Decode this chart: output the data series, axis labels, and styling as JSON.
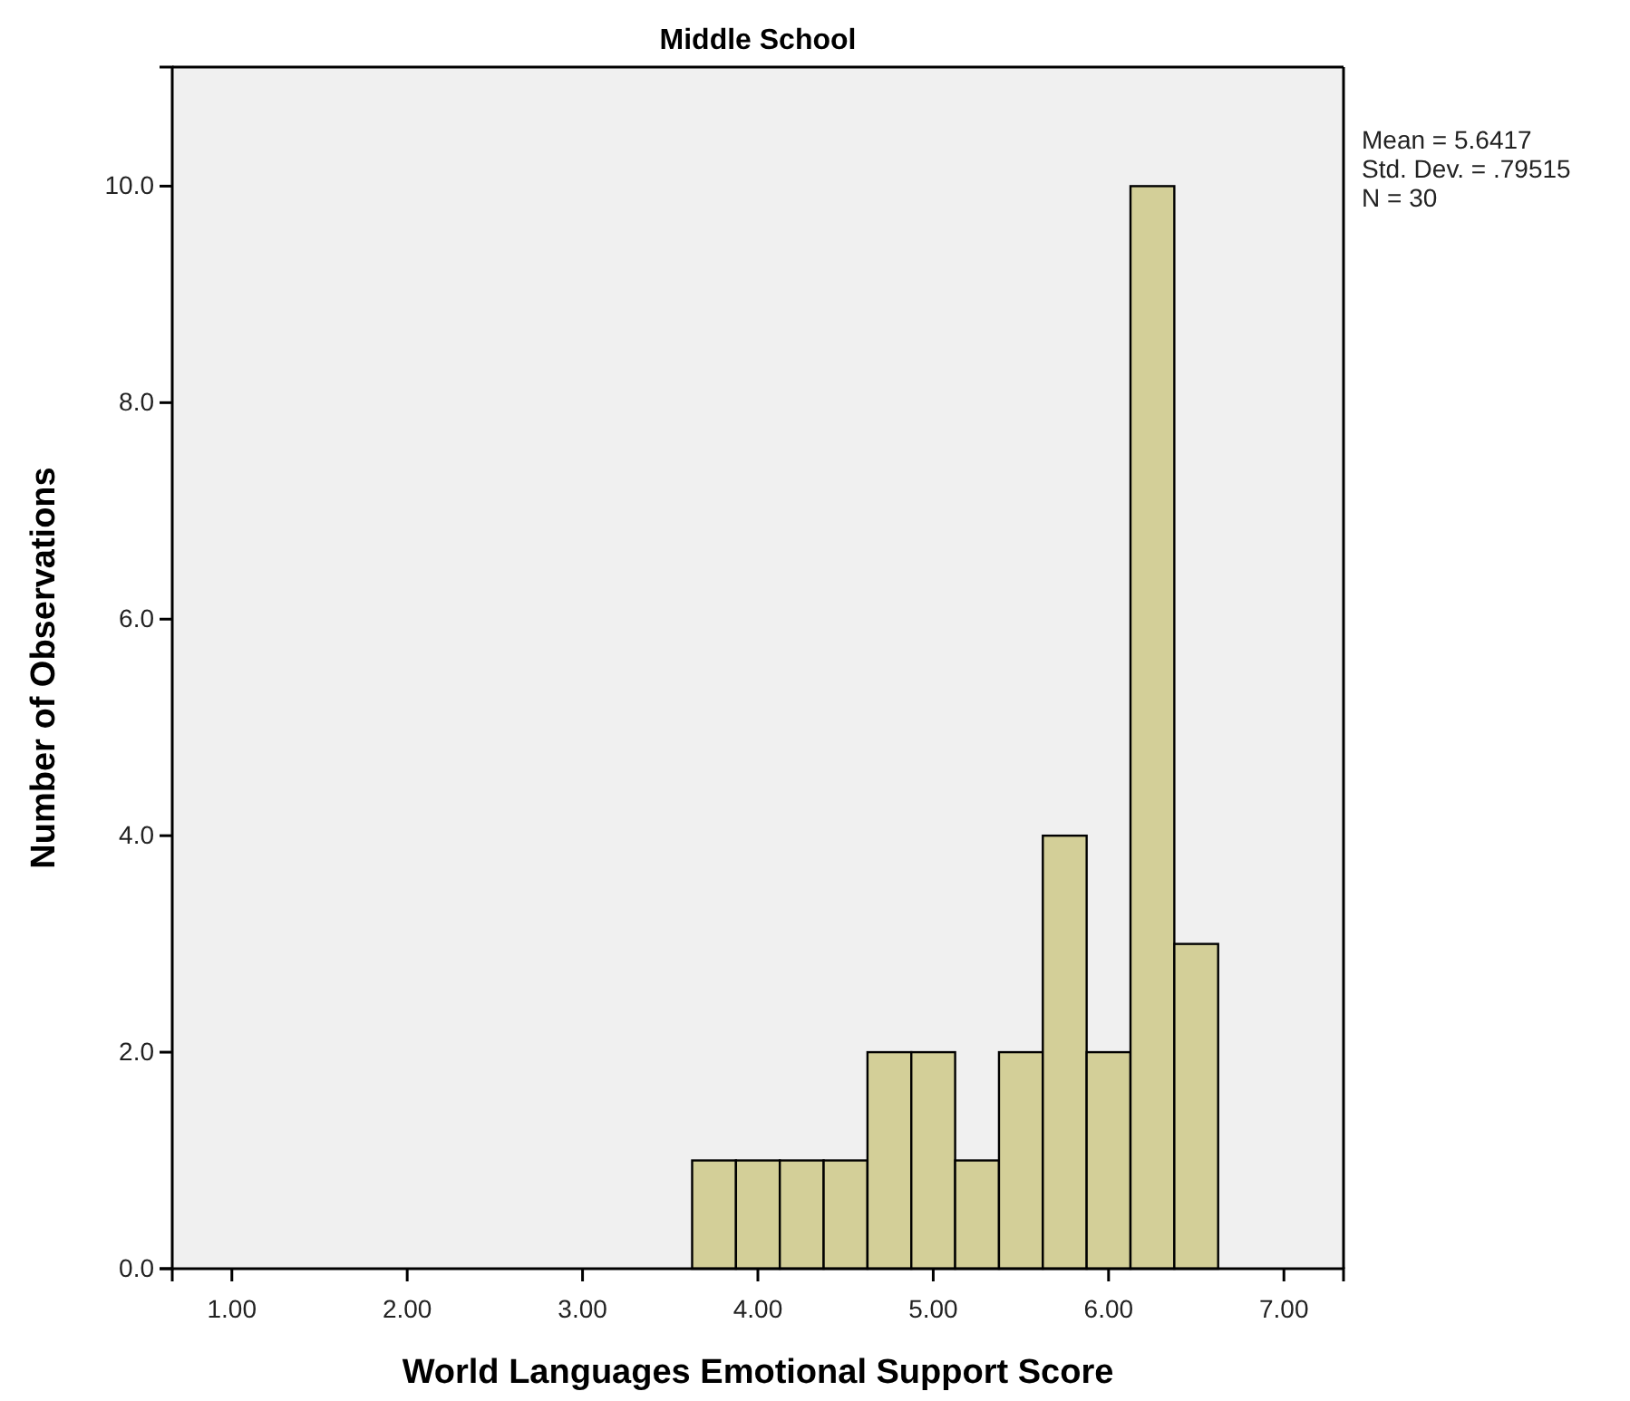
{
  "chart_data": {
    "type": "histogram",
    "title": "Middle School",
    "xlabel": "World Languages Emotional Support Score",
    "ylabel": "Number of Observations",
    "bins": [
      3.625,
      3.875,
      4.125,
      4.375,
      4.625,
      4.875,
      5.125,
      5.375,
      5.625,
      5.875,
      6.125,
      6.375,
      6.625
    ],
    "values": [
      1,
      1,
      1,
      1,
      2,
      2,
      1,
      2,
      4,
      2,
      10,
      3
    ],
    "color": "#d3cf98",
    "xlim": [
      0.66,
      7.34
    ],
    "xticks": [
      {
        "value": 1,
        "label": "1.00"
      },
      {
        "value": 2,
        "label": "2.00"
      },
      {
        "value": 3,
        "label": "3.00"
      },
      {
        "value": 4,
        "label": "4.00"
      },
      {
        "value": 5,
        "label": "5.00"
      },
      {
        "value": 6,
        "label": "6.00"
      },
      {
        "value": 7,
        "label": "7.00"
      }
    ],
    "ylim": [
      0,
      11.1
    ],
    "yticks": [
      {
        "value": 0,
        "label": "0.0"
      },
      {
        "value": 2,
        "label": "2.0"
      },
      {
        "value": 4,
        "label": "4.0"
      },
      {
        "value": 6,
        "label": "6.0"
      },
      {
        "value": 8,
        "label": "8.0"
      },
      {
        "value": 10,
        "label": "10.0"
      }
    ],
    "grid": false,
    "annotations": [
      "Mean = 5.6417",
      "Std. Dev. = .79515",
      "N = 30"
    ]
  }
}
